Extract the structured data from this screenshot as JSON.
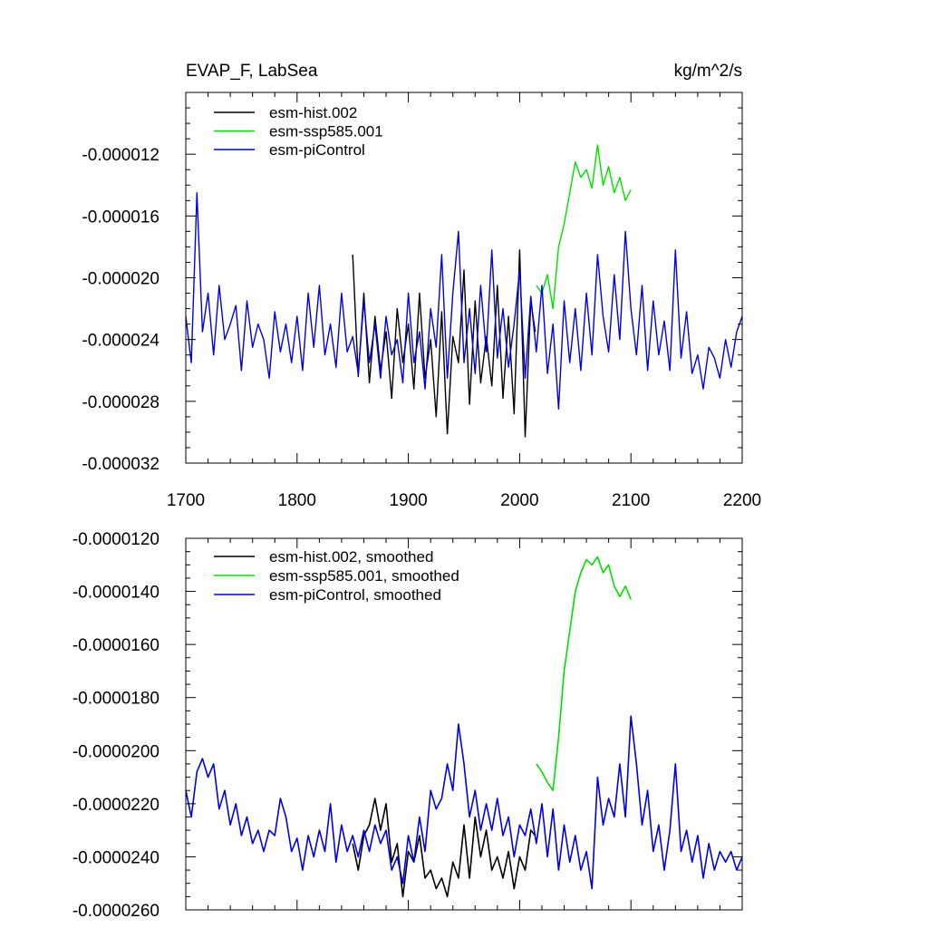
{
  "chart_data": [
    {
      "type": "line",
      "title": "EVAP_F, LabSea",
      "units": "kg/m^2/s",
      "xlim": [
        1700,
        2200
      ],
      "ylim": [
        -3.2e-05,
        -8e-06
      ],
      "x_ticks": [
        1700,
        1800,
        1900,
        2000,
        2100,
        2200
      ],
      "x_tick_labels": [
        "1700",
        "1800",
        "1900",
        "2000",
        "2100",
        "2200"
      ],
      "y_ticks": [
        -3.2e-05,
        -2.8e-05,
        -2.4e-05,
        -2e-05,
        -1.6e-05,
        -1.2e-05
      ],
      "y_tick_labels": [
        "-0.000032",
        "-0.000028",
        "-0.000024",
        "-0.000020",
        "-0.000016",
        "-0.000012"
      ],
      "legend": [
        "esm-hist.002",
        "esm-ssp585.001",
        "esm-piControl"
      ],
      "legend_position": "top-left",
      "series": [
        {
          "name": "esm-hist.002",
          "color": "#000000",
          "x": [
            1850,
            1855,
            1860,
            1865,
            1870,
            1875,
            1880,
            1885,
            1890,
            1895,
            1900,
            1905,
            1910,
            1915,
            1920,
            1925,
            1930,
            1935,
            1940,
            1945,
            1950,
            1955,
            1960,
            1965,
            1970,
            1975,
            1980,
            1985,
            1990,
            1995,
            2000,
            2005,
            2010,
            2014
          ],
          "values": [
            -1.85e-05,
            -2.64e-05,
            -2.1e-05,
            -2.68e-05,
            -2.25e-05,
            -2.6e-05,
            -2.35e-05,
            -2.78e-05,
            -2.2e-05,
            -2.55e-05,
            -2.3e-05,
            -2.72e-05,
            -2.1e-05,
            -2.65e-05,
            -2.4e-05,
            -2.9e-05,
            -2.22e-05,
            -3.01e-05,
            -2.38e-05,
            -2.55e-05,
            -1.95e-05,
            -2.82e-05,
            -2.15e-05,
            -2.68e-05,
            -2.38e-05,
            -2.7e-05,
            -2.05e-05,
            -2.78e-05,
            -2.25e-05,
            -2.88e-05,
            -1.82e-05,
            -3.03e-05,
            -2.15e-05,
            -2.35e-05
          ]
        },
        {
          "name": "esm-ssp585.001",
          "color": "#00e000",
          "x": [
            2015,
            2020,
            2025,
            2030,
            2035,
            2040,
            2045,
            2050,
            2055,
            2060,
            2065,
            2070,
            2075,
            2080,
            2085,
            2090,
            2095,
            2100
          ],
          "values": [
            -2.05e-05,
            -2.1e-05,
            -1.98e-05,
            -2.2e-05,
            -1.8e-05,
            -1.65e-05,
            -1.45e-05,
            -1.25e-05,
            -1.35e-05,
            -1.3e-05,
            -1.42e-05,
            -1.14e-05,
            -1.4e-05,
            -1.28e-05,
            -1.45e-05,
            -1.35e-05,
            -1.5e-05,
            -1.43e-05
          ]
        },
        {
          "name": "esm-piControl",
          "color": "#0000e8",
          "x": [
            1700,
            1705,
            1710,
            1715,
            1720,
            1725,
            1730,
            1735,
            1740,
            1745,
            1750,
            1755,
            1760,
            1765,
            1770,
            1775,
            1780,
            1785,
            1790,
            1795,
            1800,
            1805,
            1810,
            1815,
            1820,
            1825,
            1830,
            1835,
            1840,
            1845,
            1850,
            1855,
            1860,
            1865,
            1870,
            1875,
            1880,
            1885,
            1890,
            1895,
            1900,
            1905,
            1910,
            1915,
            1920,
            1925,
            1930,
            1935,
            1940,
            1945,
            1950,
            1955,
            1960,
            1965,
            1970,
            1975,
            1980,
            1985,
            1990,
            1995,
            2000,
            2005,
            2010,
            2015,
            2020,
            2025,
            2030,
            2035,
            2040,
            2045,
            2050,
            2055,
            2060,
            2065,
            2070,
            2075,
            2080,
            2085,
            2090,
            2095,
            2100,
            2105,
            2110,
            2115,
            2120,
            2125,
            2130,
            2135,
            2140,
            2145,
            2150,
            2155,
            2160,
            2165,
            2170,
            2175,
            2180,
            2185,
            2190,
            2195,
            2200
          ],
          "values": [
            -2.25e-05,
            -2.55e-05,
            -1.45e-05,
            -2.35e-05,
            -2.1e-05,
            -2.5e-05,
            -2.05e-05,
            -2.4e-05,
            -2.3e-05,
            -2.18e-05,
            -2.6e-05,
            -2.15e-05,
            -2.45e-05,
            -2.3e-05,
            -2.4e-05,
            -2.65e-05,
            -2.22e-05,
            -2.48e-05,
            -2.3e-05,
            -2.55e-05,
            -2.25e-05,
            -2.6e-05,
            -2.1e-05,
            -2.45e-05,
            -2.05e-05,
            -2.5e-05,
            -2.3e-05,
            -2.58e-05,
            -2.1e-05,
            -2.48e-05,
            -2.38e-05,
            -2.62e-05,
            -2.15e-05,
            -2.55e-05,
            -2.3e-05,
            -2.65e-05,
            -2.25e-05,
            -2.5e-05,
            -2.4e-05,
            -2.68e-05,
            -2.1e-05,
            -2.55e-05,
            -2.35e-05,
            -2.72e-05,
            -2.2e-05,
            -2.45e-05,
            -1.85e-05,
            -2.65e-05,
            -2.1e-05,
            -1.7e-05,
            -2.55e-05,
            -2.2e-05,
            -2.62e-05,
            -2.05e-05,
            -2.48e-05,
            -1.82e-05,
            -2.52e-05,
            -2.2e-05,
            -2.58e-05,
            -2.3e-05,
            -1.95e-05,
            -2.65e-05,
            -2.12e-05,
            -2.48e-05,
            -2.05e-05,
            -2.62e-05,
            -2.3e-05,
            -2.85e-05,
            -2.15e-05,
            -2.55e-05,
            -2.2e-05,
            -2.6e-05,
            -2.1e-05,
            -2.5e-05,
            -1.85e-05,
            -2.25e-05,
            -2.48e-05,
            -1.98e-05,
            -2.4e-05,
            -1.7e-05,
            -2.2e-05,
            -2.5e-05,
            -2.05e-05,
            -2.6e-05,
            -2.15e-05,
            -2.5e-05,
            -2.28e-05,
            -2.6e-05,
            -1.82e-05,
            -2.52e-05,
            -2.22e-05,
            -2.62e-05,
            -2.5e-05,
            -2.72e-05,
            -2.45e-05,
            -2.52e-05,
            -2.65e-05,
            -2.4e-05,
            -2.58e-05,
            -2.35e-05,
            -2.25e-05
          ]
        }
      ]
    },
    {
      "type": "line",
      "title": "",
      "xlim": [
        1700,
        2200
      ],
      "ylim": [
        -2.6e-05,
        -1.2e-05
      ],
      "x_ticks": [
        1700,
        1800,
        1900,
        2000,
        2100,
        2200
      ],
      "x_tick_labels": [],
      "y_ticks": [
        -2.6e-05,
        -2.4e-05,
        -2.2e-05,
        -2e-05,
        -1.8e-05,
        -1.6e-05,
        -1.4e-05,
        -1.2e-05
      ],
      "y_tick_labels": [
        "-0.0000260",
        "-0.0000240",
        "-0.0000220",
        "-0.0000200",
        "-0.0000180",
        "-0.0000160",
        "-0.0000140",
        "-0.0000120"
      ],
      "legend": [
        "esm-hist.002, smoothed",
        "esm-ssp585.001, smoothed",
        "esm-piControl, smoothed"
      ],
      "legend_position": "top-left",
      "series": [
        {
          "name": "esm-hist.002, smoothed",
          "color": "#000000",
          "x": [
            1850,
            1855,
            1860,
            1865,
            1870,
            1875,
            1880,
            1885,
            1890,
            1895,
            1900,
            1905,
            1910,
            1915,
            1920,
            1925,
            1930,
            1935,
            1940,
            1945,
            1950,
            1955,
            1960,
            1965,
            1970,
            1975,
            1980,
            1985,
            1990,
            1995,
            2000,
            2005,
            2010,
            2014
          ],
          "values": [
            -2.35e-05,
            -2.45e-05,
            -2.32e-05,
            -2.28e-05,
            -2.18e-05,
            -2.3e-05,
            -2.2e-05,
            -2.42e-05,
            -2.35e-05,
            -2.55e-05,
            -2.38e-05,
            -2.42e-05,
            -2.32e-05,
            -2.48e-05,
            -2.45e-05,
            -2.52e-05,
            -2.48e-05,
            -2.55e-05,
            -2.42e-05,
            -2.48e-05,
            -2.28e-05,
            -2.48e-05,
            -2.25e-05,
            -2.4e-05,
            -2.3e-05,
            -2.45e-05,
            -2.4e-05,
            -2.48e-05,
            -2.38e-05,
            -2.52e-05,
            -2.4e-05,
            -2.45e-05,
            -2.3e-05,
            -2.32e-05
          ]
        },
        {
          "name": "esm-ssp585.001, smoothed",
          "color": "#00e000",
          "x": [
            2015,
            2020,
            2025,
            2030,
            2035,
            2040,
            2045,
            2050,
            2055,
            2060,
            2065,
            2070,
            2075,
            2080,
            2085,
            2090,
            2095,
            2100
          ],
          "values": [
            -2.05e-05,
            -2.08e-05,
            -2.12e-05,
            -2.15e-05,
            -1.95e-05,
            -1.7e-05,
            -1.55e-05,
            -1.4e-05,
            -1.33e-05,
            -1.28e-05,
            -1.3e-05,
            -1.27e-05,
            -1.33e-05,
            -1.3e-05,
            -1.38e-05,
            -1.42e-05,
            -1.38e-05,
            -1.43e-05
          ]
        },
        {
          "name": "esm-piControl, smoothed",
          "color": "#0000e8",
          "x": [
            1700,
            1705,
            1710,
            1715,
            1720,
            1725,
            1730,
            1735,
            1740,
            1745,
            1750,
            1755,
            1760,
            1765,
            1770,
            1775,
            1780,
            1785,
            1790,
            1795,
            1800,
            1805,
            1810,
            1815,
            1820,
            1825,
            1830,
            1835,
            1840,
            1845,
            1850,
            1855,
            1860,
            1865,
            1870,
            1875,
            1880,
            1885,
            1890,
            1895,
            1900,
            1905,
            1910,
            1915,
            1920,
            1925,
            1930,
            1935,
            1940,
            1945,
            1950,
            1955,
            1960,
            1965,
            1970,
            1975,
            1980,
            1985,
            1990,
            1995,
            2000,
            2005,
            2010,
            2015,
            2020,
            2025,
            2030,
            2035,
            2040,
            2045,
            2050,
            2055,
            2060,
            2065,
            2070,
            2075,
            2080,
            2085,
            2090,
            2095,
            2100,
            2105,
            2110,
            2115,
            2120,
            2125,
            2130,
            2135,
            2140,
            2145,
            2150,
            2155,
            2160,
            2165,
            2170,
            2175,
            2180,
            2185,
            2190,
            2195,
            2200
          ],
          "values": [
            -2.15e-05,
            -2.25e-05,
            -2.08e-05,
            -2.03e-05,
            -2.1e-05,
            -2.05e-05,
            -2.22e-05,
            -2.15e-05,
            -2.28e-05,
            -2.2e-05,
            -2.32e-05,
            -2.25e-05,
            -2.35e-05,
            -2.3e-05,
            -2.38e-05,
            -2.3e-05,
            -2.32e-05,
            -2.18e-05,
            -2.25e-05,
            -2.38e-05,
            -2.33e-05,
            -2.45e-05,
            -2.32e-05,
            -2.4e-05,
            -2.3e-05,
            -2.38e-05,
            -2.2e-05,
            -2.42e-05,
            -2.28e-05,
            -2.38e-05,
            -2.32e-05,
            -2.4e-05,
            -2.3e-05,
            -2.38e-05,
            -2.28e-05,
            -2.35e-05,
            -2.3e-05,
            -2.45e-05,
            -2.4e-05,
            -2.5e-05,
            -2.32e-05,
            -2.42e-05,
            -2.25e-05,
            -2.38e-05,
            -2.15e-05,
            -2.22e-05,
            -2.18e-05,
            -2.05e-05,
            -2.15e-05,
            -1.9e-05,
            -2.05e-05,
            -2.25e-05,
            -2.15e-05,
            -2.3e-05,
            -2.2e-05,
            -2.3e-05,
            -2.18e-05,
            -2.32e-05,
            -2.25e-05,
            -2.4e-05,
            -2.28e-05,
            -2.32e-05,
            -2.22e-05,
            -2.35e-05,
            -2.2e-05,
            -2.4e-05,
            -2.22e-05,
            -2.45e-05,
            -2.28e-05,
            -2.42e-05,
            -2.32e-05,
            -2.45e-05,
            -2.38e-05,
            -2.52e-05,
            -2.1e-05,
            -2.28e-05,
            -2.18e-05,
            -2.25e-05,
            -2.05e-05,
            -2.25e-05,
            -1.87e-05,
            -2.05e-05,
            -2.28e-05,
            -2.15e-05,
            -2.38e-05,
            -2.28e-05,
            -2.45e-05,
            -2.3e-05,
            -2.05e-05,
            -2.38e-05,
            -2.3e-05,
            -2.42e-05,
            -2.32e-05,
            -2.48e-05,
            -2.35e-05,
            -2.45e-05,
            -2.38e-05,
            -2.42e-05,
            -2.38e-05,
            -2.45e-05,
            -2.4e-05
          ]
        }
      ]
    }
  ]
}
